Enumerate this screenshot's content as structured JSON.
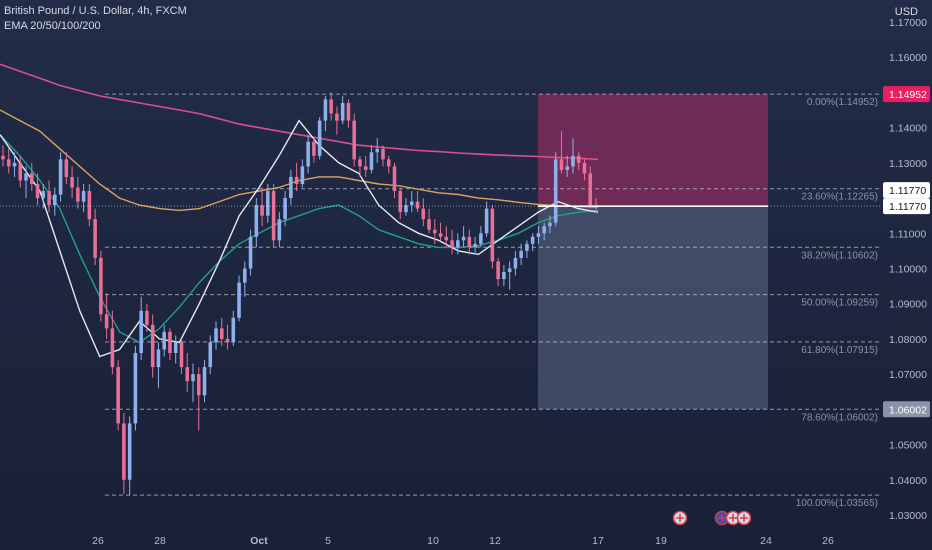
{
  "header": {
    "title": "British Pound / U.S. Dollar, 4h, FXCM",
    "indicator": "EMA 20/50/100/200",
    "currency": "USD"
  },
  "colors": {
    "background": "#1e2640",
    "bull": "#8fb0ec",
    "bear": "#e86f96",
    "ema20": "#e6e9f0",
    "ema50": "#1fa08c",
    "ema100": "#d9a45d",
    "ema200": "#d94f8c",
    "risk_zone": "#8a2c5e",
    "reward_zone": "#5d6a87",
    "price_tag": "#ffffff",
    "stop_tag": "#e91e63",
    "target_tag": "#8a94a8"
  },
  "chart_data": {
    "type": "candlestick",
    "title": "British Pound / U.S. Dollar, 4h, FXCM",
    "ylim": [
      1.025,
      1.175
    ],
    "y_axis_labels": [
      "1.17000",
      "1.16000",
      "1.15000",
      "1.14000",
      "1.13000",
      "1.12000",
      "1.11000",
      "1.10000",
      "1.09000",
      "1.08000",
      "1.07000",
      "1.06000",
      "1.05000",
      "1.04000",
      "1.03000"
    ],
    "x_axis_labels": [
      "26",
      "28",
      "Oct",
      "5",
      "10",
      "12",
      "17",
      "19",
      "24",
      "26"
    ],
    "current_price": "1.11770",
    "current_price_value": 1.1177,
    "position_price": "1.11770",
    "stop_price": "1.14952",
    "stop_price_value": 1.14952,
    "target_price": "1.06002",
    "target_price_value": 1.06002,
    "fibonacci": [
      {
        "level": "0.00%",
        "price": "1.14952",
        "value": 1.14952
      },
      {
        "level": "23.60%",
        "price": "1.12265",
        "value": 1.12265
      },
      {
        "level": "38.20%",
        "price": "1.10602",
        "value": 1.10602
      },
      {
        "level": "50.00%",
        "price": "1.09259",
        "value": 1.09259
      },
      {
        "level": "61.80%",
        "price": "1.07915",
        "value": 1.07915
      },
      {
        "level": "78.60%",
        "price": "1.06002",
        "value": 1.06002
      },
      {
        "level": "100.00%",
        "price": "1.03565",
        "value": 1.03565
      }
    ],
    "candles": [
      [
        1.132,
        1.135,
        1.129,
        1.131
      ],
      [
        1.131,
        1.134,
        1.127,
        1.129
      ],
      [
        1.129,
        1.133,
        1.126,
        1.13
      ],
      [
        1.13,
        1.132,
        1.123,
        1.125
      ],
      [
        1.125,
        1.129,
        1.12,
        1.127
      ],
      [
        1.127,
        1.13,
        1.122,
        1.124
      ],
      [
        1.124,
        1.127,
        1.118,
        1.12
      ],
      [
        1.12,
        1.124,
        1.117,
        1.122
      ],
      [
        1.122,
        1.125,
        1.116,
        1.118
      ],
      [
        1.118,
        1.123,
        1.115,
        1.121
      ],
      [
        1.121,
        1.133,
        1.119,
        1.131
      ],
      [
        1.131,
        1.133,
        1.124,
        1.126
      ],
      [
        1.126,
        1.129,
        1.12,
        1.123
      ],
      [
        1.123,
        1.126,
        1.117,
        1.119
      ],
      [
        1.119,
        1.124,
        1.116,
        1.122
      ],
      [
        1.122,
        1.124,
        1.112,
        1.114
      ],
      [
        1.114,
        1.117,
        1.101,
        1.103
      ],
      [
        1.103,
        1.105,
        1.085,
        1.087
      ],
      [
        1.087,
        1.093,
        1.08,
        1.083
      ],
      [
        1.083,
        1.088,
        1.07,
        1.072
      ],
      [
        1.072,
        1.074,
        1.054,
        1.056
      ],
      [
        1.056,
        1.059,
        1.036,
        1.04
      ],
      [
        1.04,
        1.058,
        1.0356,
        1.056
      ],
      [
        1.056,
        1.078,
        1.054,
        1.076
      ],
      [
        1.076,
        1.092,
        1.074,
        1.088
      ],
      [
        1.088,
        1.09,
        1.082,
        1.084
      ],
      [
        1.084,
        1.087,
        1.069,
        1.072
      ],
      [
        1.072,
        1.079,
        1.066,
        1.077
      ],
      [
        1.077,
        1.084,
        1.075,
        1.082
      ],
      [
        1.082,
        1.083,
        1.074,
        1.076
      ],
      [
        1.076,
        1.081,
        1.073,
        1.079
      ],
      [
        1.079,
        1.08,
        1.07,
        1.072
      ],
      [
        1.072,
        1.076,
        1.065,
        1.068
      ],
      [
        1.068,
        1.073,
        1.062,
        1.07
      ],
      [
        1.07,
        1.072,
        1.054,
        1.064
      ],
      [
        1.064,
        1.074,
        1.062,
        1.072
      ],
      [
        1.072,
        1.081,
        1.07,
        1.079
      ],
      [
        1.079,
        1.085,
        1.077,
        1.083
      ],
      [
        1.083,
        1.086,
        1.078,
        1.08
      ],
      [
        1.08,
        1.084,
        1.077,
        1.079
      ],
      [
        1.079,
        1.088,
        1.078,
        1.086
      ],
      [
        1.086,
        1.098,
        1.085,
        1.096
      ],
      [
        1.096,
        1.102,
        1.092,
        1.1
      ],
      [
        1.1,
        1.111,
        1.098,
        1.109
      ],
      [
        1.109,
        1.12,
        1.106,
        1.118
      ],
      [
        1.118,
        1.123,
        1.112,
        1.115
      ],
      [
        1.115,
        1.124,
        1.113,
        1.122
      ],
      [
        1.122,
        1.124,
        1.106,
        1.108
      ],
      [
        1.108,
        1.116,
        1.106,
        1.114
      ],
      [
        1.114,
        1.122,
        1.112,
        1.12
      ],
      [
        1.12,
        1.128,
        1.118,
        1.126
      ],
      [
        1.126,
        1.13,
        1.122,
        1.124
      ],
      [
        1.124,
        1.131,
        1.123,
        1.129
      ],
      [
        1.129,
        1.138,
        1.127,
        1.136
      ],
      [
        1.136,
        1.137,
        1.13,
        1.132
      ],
      [
        1.132,
        1.143,
        1.131,
        1.142
      ],
      [
        1.142,
        1.149,
        1.139,
        1.148
      ],
      [
        1.148,
        1.15,
        1.142,
        1.144
      ],
      [
        1.144,
        1.146,
        1.138,
        1.142
      ],
      [
        1.142,
        1.149,
        1.141,
        1.147
      ],
      [
        1.147,
        1.148,
        1.14,
        1.142
      ],
      [
        1.142,
        1.144,
        1.129,
        1.131
      ],
      [
        1.131,
        1.132,
        1.126,
        1.129
      ],
      [
        1.129,
        1.132,
        1.126,
        1.128
      ],
      [
        1.128,
        1.135,
        1.127,
        1.133
      ],
      [
        1.133,
        1.137,
        1.13,
        1.134
      ],
      [
        1.134,
        1.135,
        1.129,
        1.131
      ],
      [
        1.131,
        1.132,
        1.127,
        1.129
      ],
      [
        1.129,
        1.13,
        1.12,
        1.122
      ],
      [
        1.122,
        1.123,
        1.114,
        1.116
      ],
      [
        1.116,
        1.12,
        1.115,
        1.118
      ],
      [
        1.118,
        1.122,
        1.116,
        1.119
      ],
      [
        1.119,
        1.122,
        1.116,
        1.117
      ],
      [
        1.117,
        1.12,
        1.112,
        1.114
      ],
      [
        1.114,
        1.117,
        1.11,
        1.111
      ],
      [
        1.111,
        1.114,
        1.107,
        1.11
      ],
      [
        1.11,
        1.113,
        1.108,
        1.109
      ],
      [
        1.109,
        1.112,
        1.106,
        1.108
      ],
      [
        1.108,
        1.111,
        1.104,
        1.106
      ],
      [
        1.106,
        1.11,
        1.104,
        1.108
      ],
      [
        1.108,
        1.112,
        1.106,
        1.109
      ],
      [
        1.109,
        1.111,
        1.104,
        1.106
      ],
      [
        1.106,
        1.109,
        1.104,
        1.107
      ],
      [
        1.107,
        1.112,
        1.106,
        1.11
      ],
      [
        1.11,
        1.119,
        1.109,
        1.117
      ],
      [
        1.117,
        1.118,
        1.1,
        1.102
      ],
      [
        1.102,
        1.103,
        1.095,
        1.097
      ],
      [
        1.097,
        1.101,
        1.095,
        1.099
      ],
      [
        1.099,
        1.102,
        1.094,
        1.1
      ],
      [
        1.1,
        1.105,
        1.098,
        1.103
      ],
      [
        1.103,
        1.107,
        1.101,
        1.105
      ],
      [
        1.105,
        1.108,
        1.103,
        1.107
      ],
      [
        1.107,
        1.11,
        1.105,
        1.109
      ],
      [
        1.109,
        1.112,
        1.107,
        1.11
      ],
      [
        1.11,
        1.113,
        1.108,
        1.112
      ],
      [
        1.112,
        1.115,
        1.11,
        1.113
      ],
      [
        1.113,
        1.133,
        1.112,
        1.131
      ],
      [
        1.131,
        1.139,
        1.127,
        1.128
      ],
      [
        1.128,
        1.132,
        1.126,
        1.129
      ],
      [
        1.129,
        1.137,
        1.127,
        1.132
      ],
      [
        1.132,
        1.133,
        1.128,
        1.13
      ],
      [
        1.13,
        1.131,
        1.125,
        1.127
      ],
      [
        1.127,
        1.129,
        1.117,
        1.118
      ],
      [
        1.118,
        1.12,
        1.116,
        1.1177
      ]
    ],
    "ema200": [
      1.158,
      1.156,
      1.154,
      1.152,
      1.1505,
      1.149,
      1.148,
      1.147,
      1.146,
      1.145,
      1.144,
      1.1425,
      1.141,
      1.14,
      1.139,
      1.138,
      1.137,
      1.136,
      1.135,
      1.1345,
      1.134,
      1.1335,
      1.1332,
      1.1328,
      1.1325,
      1.1322,
      1.132,
      1.1318,
      1.1315,
      1.1313,
      1.131
    ],
    "ema100": [
      1.145,
      1.142,
      1.139,
      1.134,
      1.129,
      1.124,
      1.12,
      1.118,
      1.117,
      1.1165,
      1.117,
      1.119,
      1.121,
      1.122,
      1.123,
      1.125,
      1.126,
      1.126,
      1.125,
      1.124,
      1.1235,
      1.1225,
      1.1215,
      1.121,
      1.12,
      1.1195,
      1.1188,
      1.1182,
      1.1178,
      1.1176,
      1.1174
    ],
    "ema50": [
      1.138,
      1.132,
      1.125,
      1.117,
      1.104,
      1.092,
      1.082,
      1.079,
      1.083,
      1.089,
      1.096,
      1.102,
      1.107,
      1.11,
      1.113,
      1.115,
      1.117,
      1.118,
      1.115,
      1.111,
      1.109,
      1.107,
      1.106,
      1.106,
      1.1065,
      1.108,
      1.11,
      1.113,
      1.115,
      1.116,
      1.1165
    ],
    "ema20": [
      1.138,
      1.13,
      1.122,
      1.105,
      1.088,
      1.075,
      1.077,
      1.085,
      1.08,
      1.079,
      1.09,
      1.102,
      1.115,
      1.123,
      1.132,
      1.142,
      1.135,
      1.13,
      1.127,
      1.118,
      1.113,
      1.11,
      1.108,
      1.105,
      1.104,
      1.108,
      1.112,
      1.116,
      1.119,
      1.117,
      1.116
    ]
  },
  "events": [
    {
      "icon": "uk-flag-icon"
    },
    {
      "icon": "us-flag-icon"
    },
    {
      "icon": "uk-flag-icon"
    },
    {
      "icon": "uk-flag-icon"
    }
  ]
}
